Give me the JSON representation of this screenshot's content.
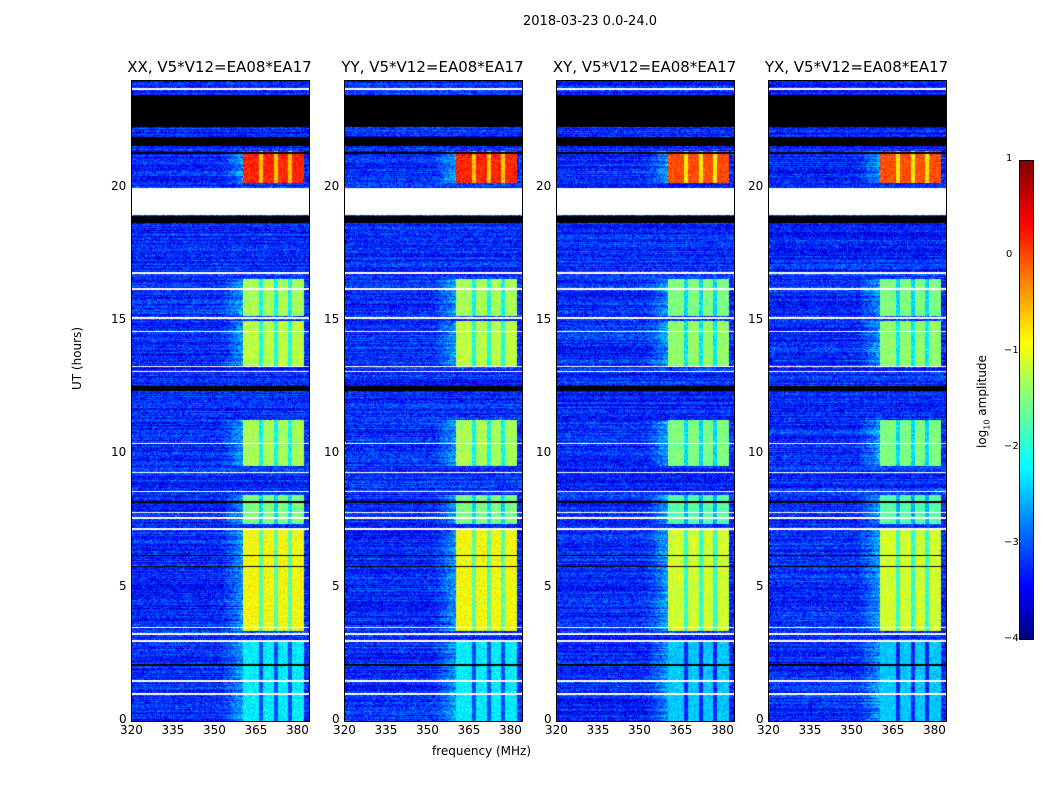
{
  "chart_data": {
    "type": "heatmap",
    "title": "2018-03-23 0.0-24.0",
    "xlabel": "frequency (MHz)",
    "ylabel": "UT (hours)",
    "xlim": [
      320,
      384
    ],
    "ylim": [
      0,
      24
    ],
    "xticks": [
      "320",
      "335",
      "350",
      "365",
      "380"
    ],
    "yticks": [
      "0",
      "5",
      "10",
      "15",
      "20"
    ],
    "panels": [
      {
        "title": "XX, V5*V12=EA08*EA17"
      },
      {
        "title": "YY, V5*V12=EA08*EA17"
      },
      {
        "title": "XY, V5*V12=EA08*EA17"
      },
      {
        "title": "YX, V5*V12=EA08*EA17"
      }
    ],
    "colorbar": {
      "label": "log",
      "label_sub": "10",
      "label_rest": " amplitude",
      "range": [
        -4,
        1
      ],
      "ticks": [
        "1",
        "0",
        "−1",
        "−2",
        "−3",
        "−4"
      ],
      "colormap": "jet"
    },
    "background_level": -3.2,
    "signal_band_mhz": [
      360,
      382
    ],
    "bright_periods": [
      {
        "t": [
          20.2,
          21.4
        ],
        "level": 0.2
      },
      {
        "t": [
          15.2,
          16.6
        ],
        "level": -1.3
      },
      {
        "t": [
          13.3,
          15.0
        ],
        "level": -1.2
      },
      {
        "t": [
          9.6,
          11.3
        ],
        "level": -1.3
      },
      {
        "t": [
          7.4,
          8.5
        ],
        "level": -1.5
      },
      {
        "t": [
          3.4,
          7.2
        ],
        "level": -0.9
      },
      {
        "t": [
          0.0,
          3.0
        ],
        "level": -2.2
      }
    ],
    "flagged_white_hours": [
      [
        19.0,
        20.0
      ],
      [
        23.7,
        23.75
      ],
      [
        16.8,
        16.85
      ],
      [
        16.2,
        16.25
      ],
      [
        15.1,
        15.15
      ],
      [
        14.6,
        14.65
      ],
      [
        13.3,
        13.35
      ],
      [
        13.1,
        13.15
      ],
      [
        10.4,
        10.45
      ],
      [
        9.3,
        9.35
      ],
      [
        8.6,
        8.65
      ],
      [
        7.8,
        7.85
      ],
      [
        7.6,
        7.65
      ],
      [
        7.2,
        7.25
      ],
      [
        3.5,
        3.55
      ],
      [
        3.25,
        3.3
      ],
      [
        3.0,
        3.05
      ],
      [
        1.5,
        1.55
      ],
      [
        1.0,
        1.05
      ]
    ],
    "flagged_black_hours": [
      [
        22.3,
        23.5
      ],
      [
        21.6,
        21.9
      ],
      [
        21.3,
        21.35
      ],
      [
        18.7,
        18.95
      ],
      [
        12.4,
        12.6
      ],
      [
        8.2,
        8.25
      ],
      [
        6.2,
        6.25
      ],
      [
        5.8,
        5.85
      ],
      [
        2.1,
        2.15
      ]
    ]
  }
}
